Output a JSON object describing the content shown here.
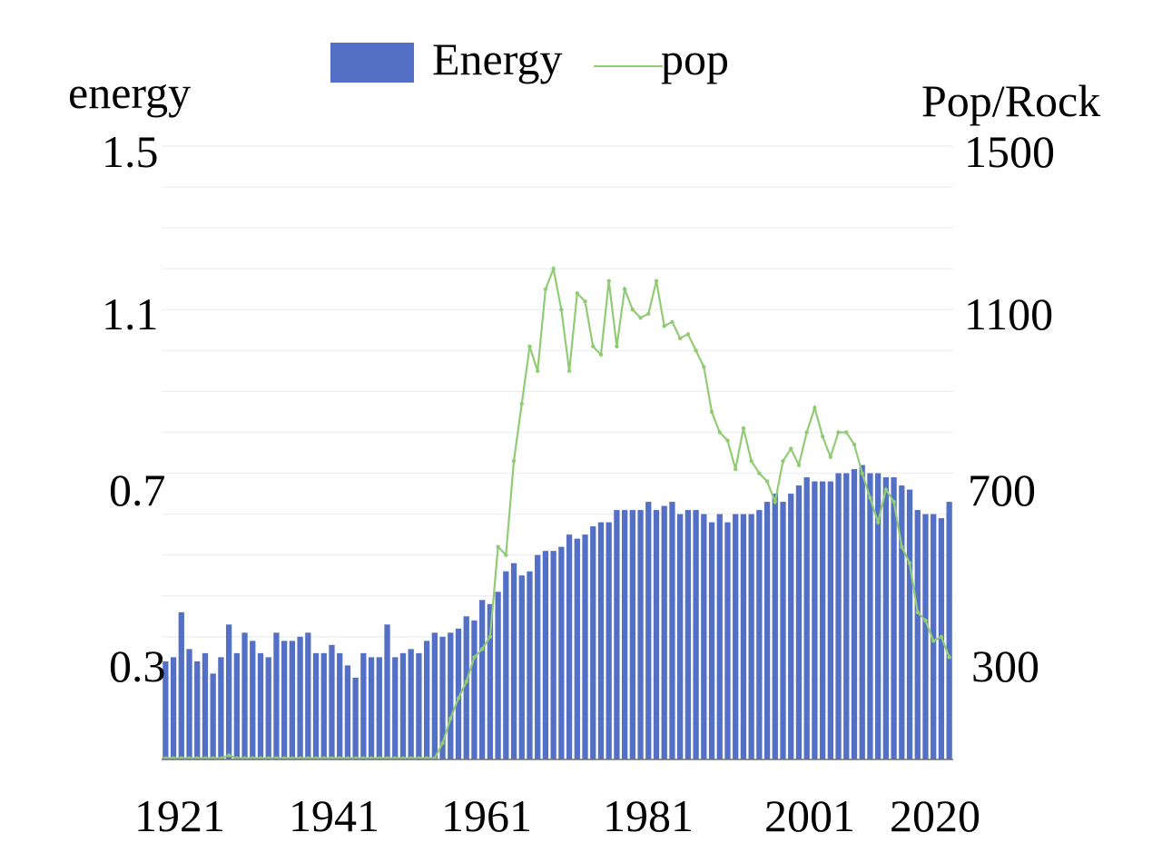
{
  "chart_data": {
    "type": "bar",
    "x_tick_labels": [
      "1921",
      "1941",
      "1961",
      "1981",
      "2001",
      "2020"
    ],
    "ylabel_left": "energy",
    "ylabel_right": "Pop/Rock",
    "y_left_ticks": [
      "1.5",
      "1.1",
      "0.7",
      "0.3"
    ],
    "y_right_ticks": [
      "1500",
      "1100",
      "700",
      "300"
    ],
    "ylim_left": [
      0,
      1.5
    ],
    "ylim_right": [
      0,
      1500
    ],
    "grid": true,
    "legend_position": "top-center",
    "x": [
      1921,
      1922,
      1923,
      1924,
      1925,
      1926,
      1927,
      1928,
      1929,
      1930,
      1931,
      1932,
      1933,
      1934,
      1935,
      1936,
      1937,
      1938,
      1939,
      1940,
      1941,
      1942,
      1943,
      1944,
      1945,
      1946,
      1947,
      1948,
      1949,
      1950,
      1951,
      1952,
      1953,
      1954,
      1955,
      1956,
      1957,
      1958,
      1959,
      1960,
      1961,
      1962,
      1963,
      1964,
      1965,
      1966,
      1967,
      1968,
      1969,
      1970,
      1971,
      1972,
      1973,
      1974,
      1975,
      1976,
      1977,
      1978,
      1979,
      1980,
      1981,
      1982,
      1983,
      1984,
      1985,
      1986,
      1987,
      1988,
      1989,
      1990,
      1991,
      1992,
      1993,
      1994,
      1995,
      1996,
      1997,
      1998,
      1999,
      2000,
      2001,
      2002,
      2003,
      2004,
      2005,
      2006,
      2007,
      2008,
      2009,
      2010,
      2011,
      2012,
      2013,
      2014,
      2015,
      2016,
      2017,
      2018,
      2019,
      2020
    ],
    "series": [
      {
        "name": "Energy",
        "axis": "left",
        "color": "#5470c6",
        "values": [
          0.24,
          0.25,
          0.36,
          0.27,
          0.24,
          0.26,
          0.21,
          0.25,
          0.33,
          0.26,
          0.31,
          0.29,
          0.26,
          0.25,
          0.31,
          0.29,
          0.29,
          0.3,
          0.31,
          0.26,
          0.26,
          0.28,
          0.26,
          0.23,
          0.2,
          0.26,
          0.25,
          0.25,
          0.33,
          0.25,
          0.26,
          0.27,
          0.26,
          0.29,
          0.31,
          0.3,
          0.31,
          0.32,
          0.35,
          0.34,
          0.39,
          0.38,
          0.41,
          0.46,
          0.48,
          0.45,
          0.46,
          0.5,
          0.51,
          0.51,
          0.52,
          0.55,
          0.54,
          0.55,
          0.57,
          0.58,
          0.58,
          0.61,
          0.61,
          0.61,
          0.61,
          0.63,
          0.61,
          0.62,
          0.63,
          0.6,
          0.61,
          0.61,
          0.6,
          0.58,
          0.6,
          0.58,
          0.6,
          0.6,
          0.6,
          0.61,
          0.63,
          0.65,
          0.63,
          0.65,
          0.67,
          0.69,
          0.68,
          0.68,
          0.68,
          0.7,
          0.7,
          0.71,
          0.72,
          0.7,
          0.7,
          0.69,
          0.69,
          0.67,
          0.66,
          0.61,
          0.6,
          0.6,
          0.59,
          0.63
        ]
      },
      {
        "name": "pop",
        "axis": "right",
        "color": "#91cc75",
        "values": [
          3,
          3,
          3,
          3,
          3,
          3,
          3,
          3,
          10,
          3,
          3,
          3,
          3,
          3,
          3,
          3,
          3,
          3,
          3,
          3,
          3,
          3,
          3,
          3,
          3,
          3,
          3,
          3,
          3,
          3,
          3,
          3,
          3,
          3,
          3,
          40,
          100,
          150,
          190,
          250,
          270,
          300,
          520,
          500,
          730,
          870,
          1010,
          950,
          1150,
          1200,
          1100,
          950,
          1140,
          1120,
          1010,
          990,
          1170,
          1010,
          1150,
          1100,
          1080,
          1090,
          1170,
          1060,
          1070,
          1030,
          1040,
          1000,
          960,
          850,
          800,
          780,
          710,
          810,
          730,
          700,
          680,
          630,
          730,
          760,
          720,
          800,
          860,
          790,
          740,
          800,
          800,
          770,
          700,
          640,
          580,
          660,
          630,
          520,
          480,
          360,
          340,
          290,
          300,
          250
        ]
      }
    ]
  },
  "legend": {
    "items": [
      {
        "name": "Energy",
        "color": "#5470c6"
      },
      {
        "name": "pop",
        "color": "#91cc75"
      }
    ]
  }
}
